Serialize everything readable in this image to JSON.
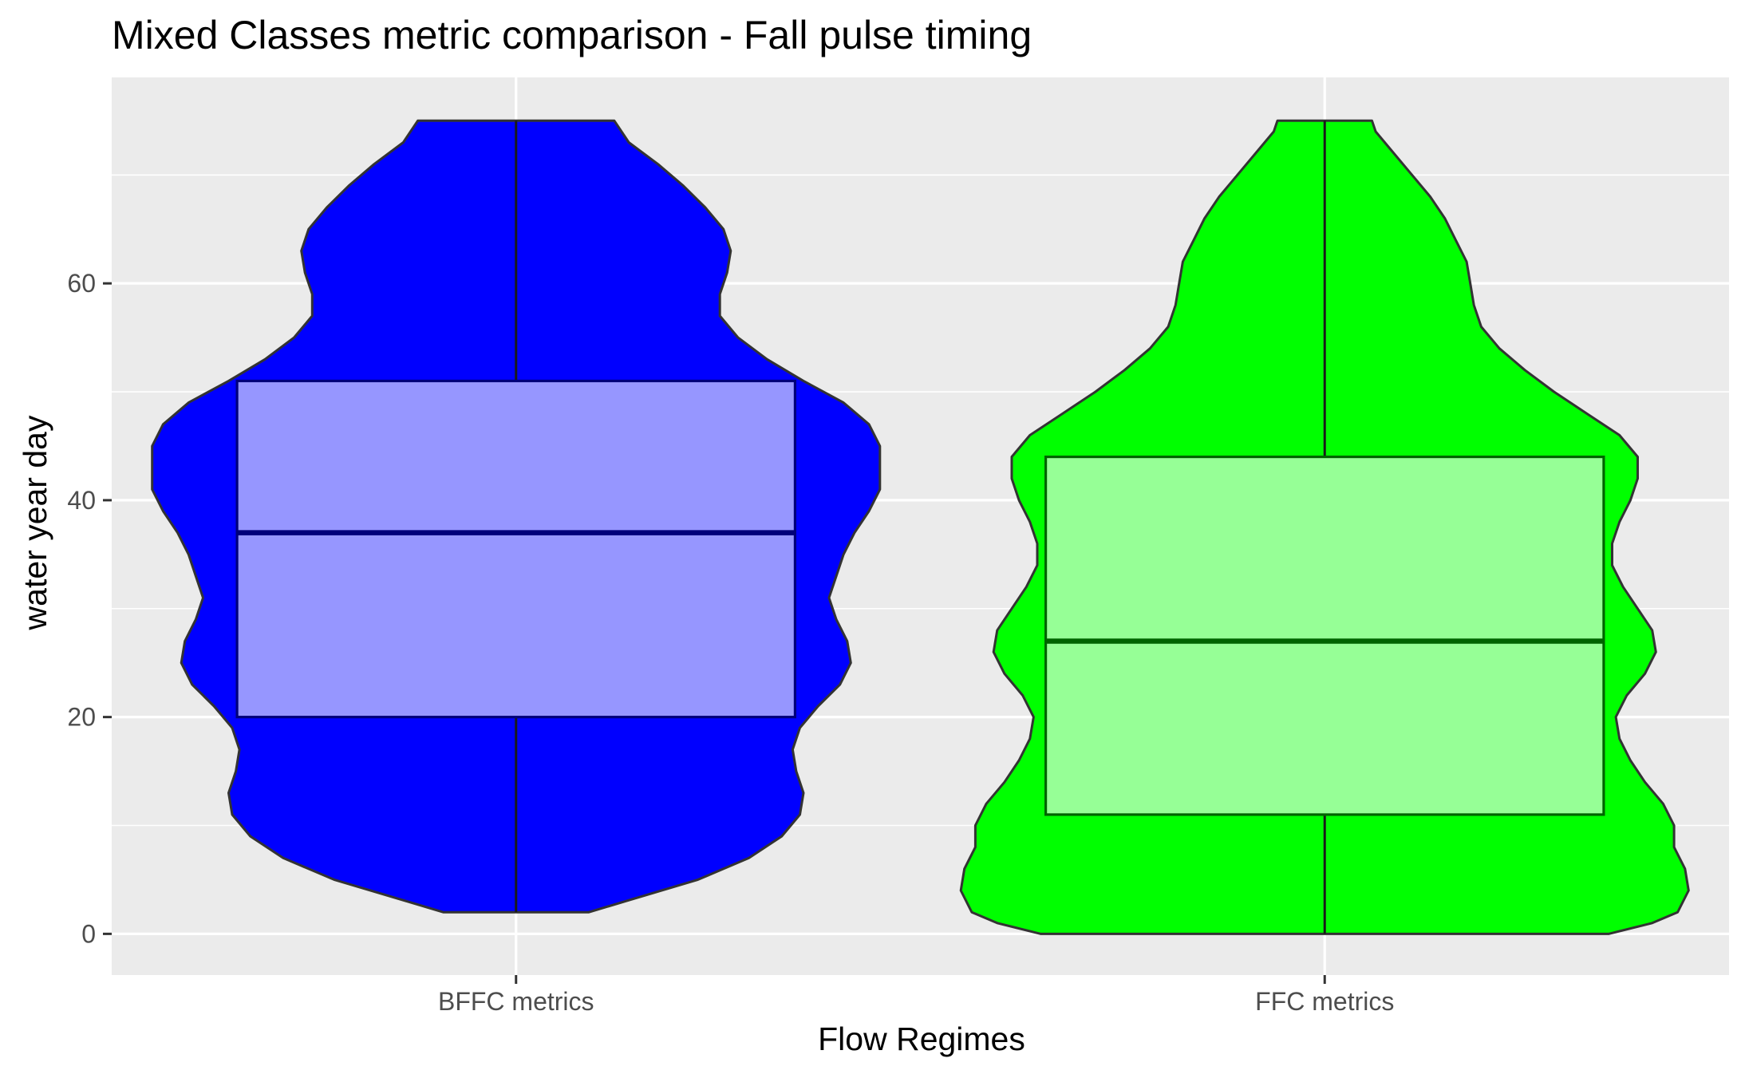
{
  "chart_data": {
    "type": "violin+box",
    "title": "Mixed Classes metric comparison - Fall pulse timing",
    "xlabel": "Flow Regimes",
    "ylabel": "water year day",
    "ylim": [
      -3.8,
      79
    ],
    "y_ticks": [
      0,
      20,
      40,
      60
    ],
    "y_minor_ticks": [
      10,
      30,
      50,
      70
    ],
    "categories": [
      "BFFC metrics",
      "FFC metrics"
    ],
    "grid": true,
    "legend": "none",
    "series": [
      {
        "category": "BFFC metrics",
        "violin_color": "#0000ff",
        "box_fill": "#9b9bff",
        "box_line": "#00007a",
        "box": {
          "whisker_low": 2,
          "q1": 20,
          "median": 37,
          "q3": 51,
          "whisker_high": 75
        },
        "violin_profile": [
          [
            2,
            0.2
          ],
          [
            3,
            0.3
          ],
          [
            5,
            0.5
          ],
          [
            7,
            0.64
          ],
          [
            9,
            0.73
          ],
          [
            11,
            0.78
          ],
          [
            13,
            0.79
          ],
          [
            15,
            0.77
          ],
          [
            17,
            0.76
          ],
          [
            19,
            0.78
          ],
          [
            21,
            0.83
          ],
          [
            23,
            0.89
          ],
          [
            25,
            0.92
          ],
          [
            27,
            0.91
          ],
          [
            29,
            0.88
          ],
          [
            31,
            0.86
          ],
          [
            33,
            0.88
          ],
          [
            35,
            0.9
          ],
          [
            37,
            0.93
          ],
          [
            39,
            0.97
          ],
          [
            41,
            1.0
          ],
          [
            43,
            1.0
          ],
          [
            45,
            1.0
          ],
          [
            47,
            0.97
          ],
          [
            49,
            0.9
          ],
          [
            51,
            0.79
          ],
          [
            53,
            0.69
          ],
          [
            55,
            0.61
          ],
          [
            57,
            0.56
          ],
          [
            59,
            0.56
          ],
          [
            61,
            0.58
          ],
          [
            63,
            0.59
          ],
          [
            65,
            0.57
          ],
          [
            67,
            0.52
          ],
          [
            69,
            0.46
          ],
          [
            71,
            0.39
          ],
          [
            73,
            0.31
          ],
          [
            75,
            0.27
          ]
        ]
      },
      {
        "category": "FFC metrics",
        "violin_color": "#00ff00",
        "box_fill": "#9bff9b",
        "box_line": "#006400",
        "box": {
          "whisker_low": 0,
          "q1": 11,
          "median": 27,
          "q3": 44,
          "whisker_high": 75
        },
        "violin_profile": [
          [
            0,
            0.78
          ],
          [
            1,
            0.9
          ],
          [
            2,
            0.97
          ],
          [
            4,
            1.0
          ],
          [
            6,
            0.99
          ],
          [
            8,
            0.96
          ],
          [
            10,
            0.96
          ],
          [
            12,
            0.93
          ],
          [
            14,
            0.88
          ],
          [
            16,
            0.84
          ],
          [
            18,
            0.81
          ],
          [
            20,
            0.8
          ],
          [
            22,
            0.83
          ],
          [
            24,
            0.88
          ],
          [
            26,
            0.91
          ],
          [
            28,
            0.9
          ],
          [
            30,
            0.86
          ],
          [
            32,
            0.82
          ],
          [
            34,
            0.79
          ],
          [
            36,
            0.79
          ],
          [
            38,
            0.81
          ],
          [
            40,
            0.84
          ],
          [
            42,
            0.86
          ],
          [
            44,
            0.86
          ],
          [
            46,
            0.81
          ],
          [
            48,
            0.72
          ],
          [
            50,
            0.63
          ],
          [
            52,
            0.55
          ],
          [
            54,
            0.48
          ],
          [
            56,
            0.43
          ],
          [
            58,
            0.41
          ],
          [
            60,
            0.4
          ],
          [
            62,
            0.39
          ],
          [
            64,
            0.36
          ],
          [
            66,
            0.33
          ],
          [
            68,
            0.29
          ],
          [
            70,
            0.24
          ],
          [
            72,
            0.19
          ],
          [
            74,
            0.14
          ],
          [
            75,
            0.13
          ]
        ]
      }
    ]
  }
}
